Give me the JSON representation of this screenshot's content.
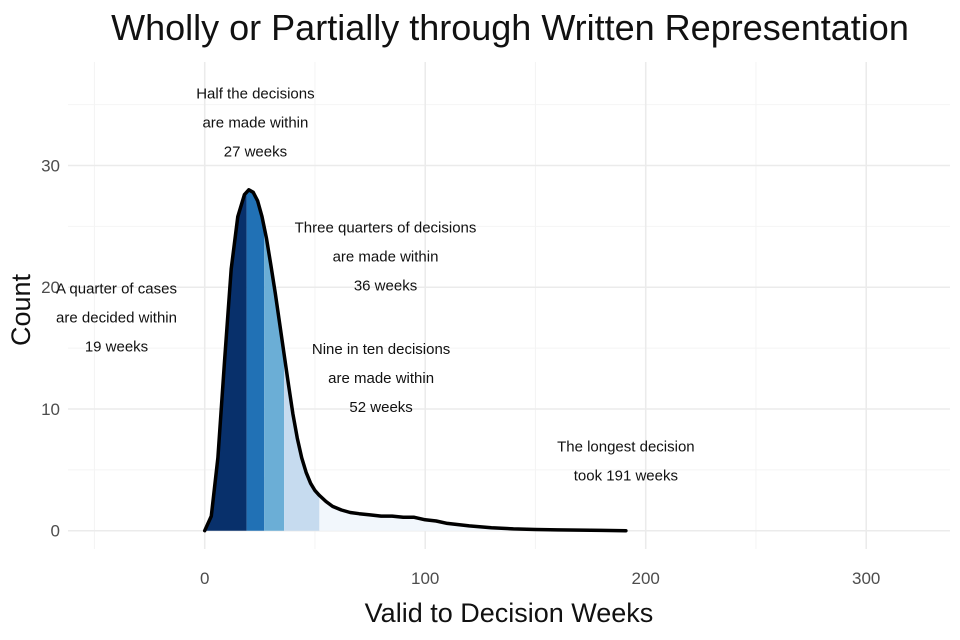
{
  "chart_data": {
    "type": "area",
    "title": "Wholly or Partially through Written Representation",
    "xlabel": "Valid to Decision Weeks",
    "ylabel": "Count",
    "xlim": [
      -62,
      338
    ],
    "ylim": [
      -1.5,
      38.5
    ],
    "x_ticks": [
      0,
      100,
      200,
      300
    ],
    "y_ticks": [
      0,
      10,
      20,
      30
    ],
    "grid": true,
    "x": [
      0,
      3,
      6,
      9,
      12,
      15,
      18,
      20,
      22,
      24,
      26,
      28,
      30,
      32,
      34,
      36,
      38,
      40,
      42,
      44,
      46,
      48,
      50,
      52,
      55,
      58,
      62,
      66,
      70,
      75,
      80,
      85,
      90,
      95,
      100,
      105,
      110,
      115,
      120,
      130,
      140,
      150,
      160,
      170,
      180,
      191
    ],
    "y": [
      0.0,
      1.2,
      6.0,
      14.0,
      21.5,
      25.8,
      27.6,
      28.0,
      27.8,
      27.1,
      25.8,
      24.0,
      21.8,
      19.5,
      17.0,
      14.5,
      12.0,
      9.6,
      7.6,
      6.0,
      4.8,
      3.9,
      3.3,
      2.9,
      2.4,
      2.0,
      1.7,
      1.5,
      1.4,
      1.3,
      1.2,
      1.2,
      1.1,
      1.1,
      0.9,
      0.8,
      0.6,
      0.5,
      0.4,
      0.25,
      0.15,
      0.1,
      0.07,
      0.05,
      0.03,
      0.0
    ],
    "quantile_bands": [
      {
        "from": 0,
        "to": 19,
        "color": "#08306b"
      },
      {
        "from": 19,
        "to": 27,
        "color": "#2171b5"
      },
      {
        "from": 27,
        "to": 36,
        "color": "#6baed6"
      },
      {
        "from": 36,
        "to": 52,
        "color": "#c6dbef"
      },
      {
        "from": 52,
        "to": 191,
        "color": "#f2f7fc"
      }
    ],
    "annotations": [
      {
        "lines": [
          "A quarter of cases",
          "are decided within",
          "19 weeks"
        ],
        "x": -40,
        "y": 19.5
      },
      {
        "lines": [
          "Half the decisions",
          "are made within",
          "27 weeks"
        ],
        "x": 23,
        "y": 35.5
      },
      {
        "lines": [
          "Three quarters of decisions",
          "are made within",
          "36 weeks"
        ],
        "x": 82,
        "y": 24.5
      },
      {
        "lines": [
          "Nine in ten decisions",
          "are made within",
          "52 weeks"
        ],
        "x": 80,
        "y": 14.5
      },
      {
        "lines": [
          "The longest decision",
          "took 191 weeks"
        ],
        "x": 191,
        "y": 6.5
      }
    ]
  }
}
